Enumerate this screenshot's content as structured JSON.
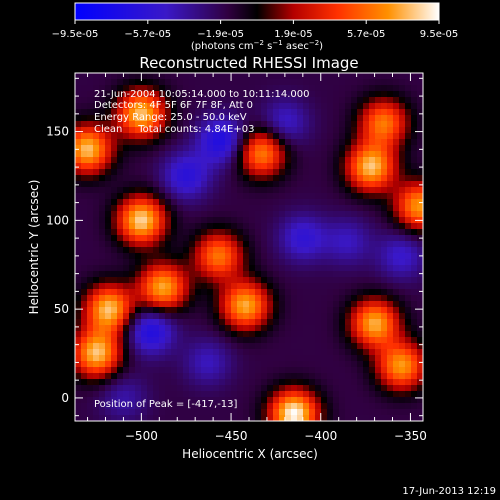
{
  "colorbar": {
    "ticks": [
      "-9.5e-05",
      "-5.7e-05",
      "-1.9e-05",
      "1.9e-05",
      "5.7e-05",
      "9.5e-05"
    ],
    "unit_label": "(photons cm-2 s-1 asec-2)",
    "unit_parts": {
      "a": "(photons cm",
      "e1": "−2",
      "b": " s",
      "e2": "−1",
      "c": " asec",
      "e3": "−2",
      "d": ")"
    },
    "range": [
      -9.5e-05,
      9.5e-05
    ]
  },
  "plot": {
    "title": "Reconstructed RHESSI Image",
    "info_lines": [
      "21-Jun-2004 10:05:14.000 to 10:11:14.000",
      "Detectors: 4F 5F 6F 7F 8F, Att 0",
      "Energy Range: 25.0 - 50.0 keV",
      "Clean     Total counts: 4.84E+03"
    ],
    "peak_label": "Position of Peak = [-417,-13]",
    "xlabel": "Heliocentric X (arcsec)",
    "ylabel": "Heliocentric Y (arcsec)"
  },
  "footer": {
    "timestamp": "17-Jun-2013 12:19"
  },
  "chart_data": {
    "type": "heatmap",
    "title": "Reconstructed RHESSI Image",
    "xlabel": "Heliocentric X (arcsec)",
    "ylabel": "Heliocentric Y (arcsec)",
    "xlim": [
      -537,
      -343
    ],
    "ylim": [
      -13,
      183
    ],
    "x_ticks": [
      -500,
      -450,
      -400,
      -350
    ],
    "x_tick_labels": [
      "−500",
      "−450",
      "−400",
      "−350"
    ],
    "y_ticks": [
      0,
      50,
      100,
      150
    ],
    "y_tick_labels": [
      "0",
      "50",
      "100",
      "150"
    ],
    "colormap": "RHESSI (blue-black-red-yellow-white)",
    "color_range": [
      -9.5e-05,
      9.5e-05
    ],
    "peak_position": [
      -417,
      -13
    ],
    "bright_sources": [
      {
        "x": -525,
        "y": 25,
        "value": 8e-05
      },
      {
        "x": -518,
        "y": 50,
        "value": 8e-05
      },
      {
        "x": -530,
        "y": 140,
        "value": 8e-05
      },
      {
        "x": -500,
        "y": 100,
        "value": 8.5e-05
      },
      {
        "x": -500,
        "y": 160,
        "value": 8e-05
      },
      {
        "x": -488,
        "y": 62,
        "value": 7.5e-05
      },
      {
        "x": -442,
        "y": 52,
        "value": 7.5e-05
      },
      {
        "x": -457,
        "y": 80,
        "value": 6e-05
      },
      {
        "x": -433,
        "y": 138,
        "value": 6.5e-05
      },
      {
        "x": -372,
        "y": 130,
        "value": 8e-05
      },
      {
        "x": -345,
        "y": 108,
        "value": 7e-05
      },
      {
        "x": -370,
        "y": 42,
        "value": 7.5e-05
      },
      {
        "x": -355,
        "y": 18,
        "value": 7e-05
      },
      {
        "x": -415,
        "y": -9,
        "value": 9.5e-05
      },
      {
        "x": -365,
        "y": 155,
        "value": 6e-05
      }
    ],
    "dark_sources": [
      {
        "x": -455,
        "y": 145,
        "value": -7e-05
      },
      {
        "x": -475,
        "y": 125,
        "value": -6e-05
      },
      {
        "x": -495,
        "y": 38,
        "value": -7e-05
      },
      {
        "x": -410,
        "y": 90,
        "value": -5.5e-05
      },
      {
        "x": -420,
        "y": 155,
        "value": -5e-05
      },
      {
        "x": -385,
        "y": 88,
        "value": -4.5e-05
      },
      {
        "x": -355,
        "y": 80,
        "value": -5e-05
      },
      {
        "x": -463,
        "y": 20,
        "value": -4.5e-05
      },
      {
        "x": -510,
        "y": 0,
        "value": -4e-05
      }
    ]
  }
}
